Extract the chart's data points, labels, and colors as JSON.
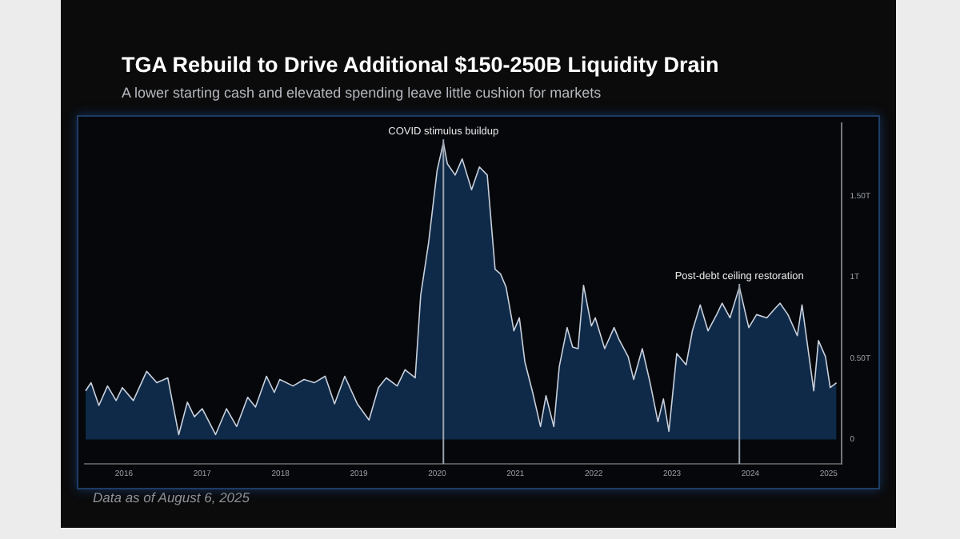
{
  "chart_data": {
    "type": "area",
    "title": "TGA Rebuild to Drive Additional $150-250B Liquidity Drain",
    "subtitle": "A lower starting cash and elevated spending leave little cushion for markets",
    "x": [
      2016.01,
      2016.08,
      2016.18,
      2016.29,
      2016.4,
      2016.48,
      2016.62,
      2016.79,
      2016.92,
      2017.06,
      2017.2,
      2017.31,
      2017.4,
      2017.5,
      2017.67,
      2017.81,
      2017.94,
      2018.08,
      2018.18,
      2018.32,
      2018.42,
      2018.49,
      2018.66,
      2018.8,
      2018.93,
      2019.07,
      2019.19,
      2019.32,
      2019.48,
      2019.63,
      2019.75,
      2019.85,
      2019.99,
      2020.09,
      2020.22,
      2020.29,
      2020.39,
      2020.5,
      2020.58,
      2020.63,
      2020.73,
      2020.82,
      2020.94,
      2021.04,
      2021.14,
      2021.24,
      2021.31,
      2021.38,
      2021.48,
      2021.55,
      2021.62,
      2021.72,
      2021.82,
      2021.89,
      2021.99,
      2022.06,
      2022.16,
      2022.23,
      2022.3,
      2022.37,
      2022.47,
      2022.52,
      2022.64,
      2022.76,
      2022.82,
      2022.94,
      2023.01,
      2023.12,
      2023.22,
      2023.32,
      2023.39,
      2023.46,
      2023.56,
      2023.68,
      2023.76,
      2023.86,
      2023.96,
      2024.07,
      2024.14,
      2024.24,
      2024.36,
      2024.48,
      2024.58,
      2024.71,
      2024.82,
      2024.88,
      2024.98,
      2025.1,
      2025.16,
      2025.31,
      2025.37,
      2025.46,
      2025.52,
      2025.6
    ],
    "series": [
      {
        "color": "#c8d0dc",
        "values": [
          0.3,
          0.35,
          0.21,
          0.33,
          0.24,
          0.32,
          0.24,
          0.42,
          0.35,
          0.38,
          0.03,
          0.23,
          0.14,
          0.19,
          0.03,
          0.19,
          0.08,
          0.26,
          0.2,
          0.39,
          0.29,
          0.37,
          0.33,
          0.37,
          0.35,
          0.39,
          0.22,
          0.39,
          0.22,
          0.12,
          0.32,
          0.38,
          0.33,
          0.43,
          0.38,
          0.89,
          1.21,
          1.66,
          1.83,
          1.7,
          1.63,
          1.73,
          1.54,
          1.68,
          1.63,
          1.05,
          1.02,
          0.94,
          0.67,
          0.75,
          0.48,
          0.29,
          0.08,
          0.27,
          0.08,
          0.45,
          0.69,
          0.57,
          0.56,
          0.95,
          0.7,
          0.75,
          0.56,
          0.69,
          0.62,
          0.51,
          0.37,
          0.56,
          0.35,
          0.11,
          0.25,
          0.05,
          0.53,
          0.46,
          0.67,
          0.83,
          0.67,
          0.77,
          0.84,
          0.75,
          0.94,
          0.69,
          0.77,
          0.75,
          0.81,
          0.84,
          0.77,
          0.64,
          0.83,
          0.3,
          0.61,
          0.51,
          0.32,
          0.35
        ]
      }
    ],
    "xlim": [
      2016,
      2025.67
    ],
    "xticks": [
      {
        "value": 2016.5,
        "label": "2016"
      },
      {
        "value": 2017.5,
        "label": "2017"
      },
      {
        "value": 2018.5,
        "label": "2018"
      },
      {
        "value": 2019.5,
        "label": "2019"
      },
      {
        "value": 2020.5,
        "label": "2020"
      },
      {
        "value": 2021.5,
        "label": "2021"
      },
      {
        "value": 2022.5,
        "label": "2022"
      },
      {
        "value": 2023.5,
        "label": "2023"
      },
      {
        "value": 2024.5,
        "label": "2024"
      },
      {
        "value": 2025.5,
        "label": "2025"
      }
    ],
    "ylim": [
      -0.15,
      1.95
    ],
    "yticks": [
      {
        "value": 0,
        "label": "0"
      },
      {
        "value": 0.5,
        "label": "0.50T"
      },
      {
        "value": 1,
        "label": "1T"
      },
      {
        "value": 1.5,
        "label": "1.50T"
      }
    ],
    "ref_lines": [
      {
        "axis": "x",
        "value": 2020.58,
        "label": "COVID stimulus buildup",
        "color": "#9aa3ad"
      },
      {
        "axis": "x",
        "value": 2024.36,
        "label": "Post-debt ceiling restoration",
        "color": "#9aa3ad"
      }
    ],
    "annotations": [
      "Data as of August 6, 2025"
    ],
    "legend": false
  }
}
